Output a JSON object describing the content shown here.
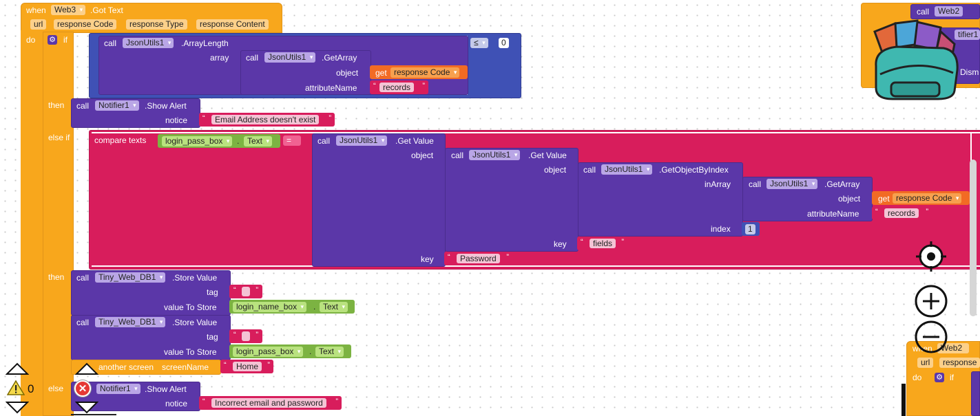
{
  "event": {
    "when": "when",
    "component": "Web3",
    "event": ".Got Text",
    "params": [
      "url",
      "response Code",
      "response Type",
      "response Content"
    ],
    "do": "do"
  },
  "if_block": {
    "if": "if",
    "then": "then",
    "else_if": "else if",
    "then2": "then",
    "else": "else"
  },
  "arraylength": {
    "call": "call",
    "component": "JsonUtils1",
    "method": ".ArrayLength",
    "array": "array",
    "op": "≤",
    "value": "0"
  },
  "getarray1": {
    "call": "call",
    "component": "JsonUtils1",
    "method": ".GetArray",
    "object": "object",
    "attributeName": "attributeName",
    "get": "get",
    "var": "response Code",
    "str": "records"
  },
  "alert1": {
    "call": "call",
    "component": "Notifier1",
    "method": ".Show Alert",
    "notice": "notice",
    "str": "Email Address doesn't exist"
  },
  "compare": {
    "label": "compare texts",
    "component": "login_pass_box",
    "prop": "Text",
    "op": "="
  },
  "getvalue1": {
    "call": "call",
    "component": "JsonUtils1",
    "method": ".Get Value",
    "object": "object",
    "key": "key",
    "str": "Password"
  },
  "getvalue2": {
    "call": "call",
    "component": "JsonUtils1",
    "method": ".Get Value",
    "object": "object",
    "key": "key",
    "str": "fields"
  },
  "getobj": {
    "call": "call",
    "component": "JsonUtils1",
    "method": ".GetObjectByIndex",
    "inArray": "inArray",
    "index": "index",
    "num": "1"
  },
  "getarray2": {
    "call": "call",
    "component": "JsonUtils1",
    "method": ".GetArray",
    "object": "object",
    "attributeName": "attributeName",
    "get": "get",
    "var": "response Code",
    "str": "records"
  },
  "store1": {
    "call": "call",
    "component": "Tiny_Web_DB1",
    "method": ".Store Value",
    "tag": "tag",
    "valueToStore": "value To Store",
    "comp": "login_name_box",
    "prop": "Text"
  },
  "store2": {
    "call": "call",
    "component": "Tiny_Web_DB1",
    "method": ".Store Value",
    "tag": "tag",
    "valueToStore": "value To Store",
    "comp": "login_pass_box",
    "prop": "Text"
  },
  "screen": {
    "label": "another screen",
    "screenName": "screenName",
    "str": "Home"
  },
  "alert2": {
    "call": "call",
    "component": "Notifier1",
    "method": ".Show Alert",
    "notice": "notice",
    "str": "Incorrect email and password"
  },
  "topright": {
    "call": "call",
    "component": "Web2",
    "fragment1": "tifier1",
    "fragment2": "Dism"
  },
  "bottomright": {
    "when": "when",
    "component": "Web2",
    "params": [
      "url",
      "response"
    ],
    "do": "do",
    "if": "if"
  },
  "warnings": {
    "count": "0"
  },
  "icons": [
    "gear-icon",
    "warning-icon",
    "error-icon",
    "backpack-icon",
    "target-icon",
    "zoom-in-icon",
    "zoom-out-icon",
    "arrow-up-icon",
    "arrow-down-icon"
  ],
  "colors": {
    "event": "#f8a71c",
    "procedure": "#5b37a8",
    "compare": "#d81d5c",
    "math": "#3f51b5",
    "text": "#d81d5c",
    "variable": "#f26b24",
    "component": "#7cb342"
  }
}
